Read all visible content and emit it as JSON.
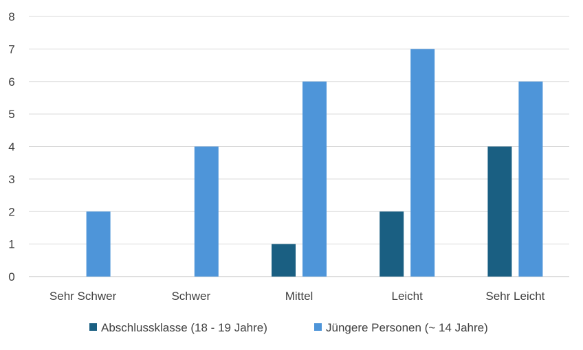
{
  "chart_data": {
    "type": "bar",
    "categories": [
      "Sehr Schwer",
      "Schwer",
      "Mittel",
      "Leicht",
      "Sehr Leicht"
    ],
    "series": [
      {
        "name": "Abschlussklasse (18 - 19 Jahre)",
        "values": [
          0,
          0,
          1,
          2,
          4
        ],
        "color": "#1a5f82"
      },
      {
        "name": "Jüngere Personen (~ 14 Jahre)",
        "values": [
          2,
          4,
          6,
          7,
          6
        ],
        "color": "#4e95d9"
      }
    ],
    "ylim": [
      0,
      8
    ],
    "yticks": [
      "0",
      "1",
      "2",
      "3",
      "4",
      "5",
      "6",
      "7",
      "8"
    ],
    "grid": true,
    "legend": "bottom",
    "title": "",
    "xlabel": "",
    "ylabel": ""
  }
}
